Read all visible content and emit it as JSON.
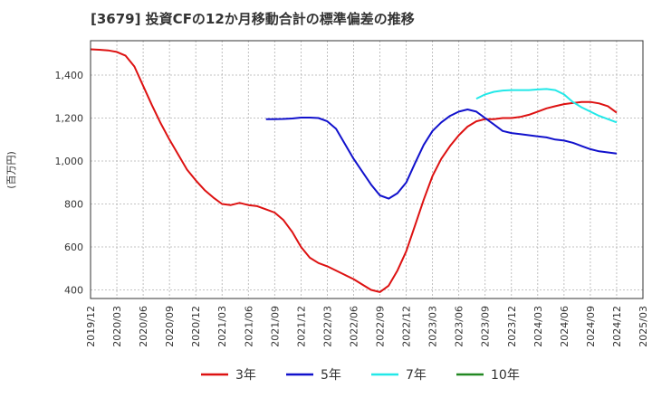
{
  "chart_data": {
    "type": "line",
    "title": "[3679]  投資CFの12か月移動合計の標準偏差の推移",
    "ylabel": "(百万円)",
    "xlabel": "",
    "ylim": [
      360,
      1560
    ],
    "yticks": [
      400,
      600,
      800,
      1000,
      1200,
      1400
    ],
    "ytick_labels": [
      "400",
      "600",
      "800",
      "1,000",
      "1,200",
      "1,400"
    ],
    "xlim": [
      "2019-12",
      "2025-03"
    ],
    "xtick_labels": [
      "2019/12",
      "2020/03",
      "2020/06",
      "2020/09",
      "2020/12",
      "2021/03",
      "2021/06",
      "2021/09",
      "2021/12",
      "2022/03",
      "2022/06",
      "2022/09",
      "2022/12",
      "2023/03",
      "2023/06",
      "2023/09",
      "2023/12",
      "2024/03",
      "2024/06",
      "2024/09",
      "2024/12",
      "2025/03"
    ],
    "grid": true,
    "legend_position": "bottom",
    "series": [
      {
        "name": "3年",
        "color": "#dd1111",
        "x": [
          "2019-12",
          "2020-01",
          "2020-02",
          "2020-03",
          "2020-04",
          "2020-05",
          "2020-06",
          "2020-07",
          "2020-08",
          "2020-09",
          "2020-10",
          "2020-11",
          "2020-12",
          "2021-01",
          "2021-02",
          "2021-03",
          "2021-04",
          "2021-05",
          "2021-06",
          "2021-07",
          "2021-08",
          "2021-09",
          "2021-10",
          "2021-11",
          "2021-12",
          "2022-01",
          "2022-02",
          "2022-03",
          "2022-04",
          "2022-05",
          "2022-06",
          "2022-07",
          "2022-08",
          "2022-09",
          "2022-10",
          "2022-11",
          "2022-12",
          "2023-01",
          "2023-02",
          "2023-03",
          "2023-04",
          "2023-05",
          "2023-06",
          "2023-07",
          "2023-08",
          "2023-09",
          "2023-10",
          "2023-11",
          "2023-12",
          "2024-01",
          "2024-02",
          "2024-03",
          "2024-04",
          "2024-05",
          "2024-06",
          "2024-07",
          "2024-08",
          "2024-09",
          "2024-10",
          "2024-11",
          "2024-12"
        ],
        "values": [
          1520,
          1518,
          1515,
          1508,
          1490,
          1440,
          1350,
          1260,
          1175,
          1100,
          1030,
          960,
          910,
          865,
          830,
          800,
          795,
          805,
          795,
          790,
          775,
          760,
          725,
          670,
          600,
          550,
          525,
          510,
          490,
          470,
          450,
          425,
          400,
          390,
          420,
          490,
          580,
          700,
          820,
          930,
          1010,
          1070,
          1120,
          1160,
          1185,
          1195,
          1195,
          1200,
          1200,
          1205,
          1215,
          1230,
          1245,
          1255,
          1265,
          1270,
          1275,
          1275,
          1268,
          1255,
          1225
        ]
      },
      {
        "name": "5年",
        "color": "#1111cc",
        "x": [
          "2021-08",
          "2021-09",
          "2021-10",
          "2021-11",
          "2021-12",
          "2022-01",
          "2022-02",
          "2022-03",
          "2022-04",
          "2022-05",
          "2022-06",
          "2022-07",
          "2022-08",
          "2022-09",
          "2022-10",
          "2022-11",
          "2022-12",
          "2023-01",
          "2023-02",
          "2023-03",
          "2023-04",
          "2023-05",
          "2023-06",
          "2023-07",
          "2023-08",
          "2023-09",
          "2023-10",
          "2023-11",
          "2023-12",
          "2024-01",
          "2024-02",
          "2024-03",
          "2024-04",
          "2024-05",
          "2024-06",
          "2024-07",
          "2024-08",
          "2024-09",
          "2024-10",
          "2024-11",
          "2024-12"
        ],
        "values": [
          1195,
          1195,
          1196,
          1198,
          1202,
          1202,
          1200,
          1185,
          1150,
          1080,
          1010,
          950,
          890,
          840,
          825,
          850,
          900,
          990,
          1075,
          1140,
          1180,
          1210,
          1230,
          1240,
          1230,
          1200,
          1170,
          1140,
          1130,
          1125,
          1120,
          1115,
          1110,
          1100,
          1095,
          1085,
          1070,
          1055,
          1045,
          1040,
          1035
        ]
      },
      {
        "name": "7年",
        "color": "#22e8e8",
        "x": [
          "2023-08",
          "2023-09",
          "2023-10",
          "2023-11",
          "2023-12",
          "2024-01",
          "2024-02",
          "2024-03",
          "2024-04",
          "2024-05",
          "2024-06",
          "2024-07",
          "2024-08",
          "2024-09",
          "2024-10",
          "2024-11",
          "2024-12"
        ],
        "values": [
          1290,
          1310,
          1322,
          1328,
          1330,
          1330,
          1330,
          1333,
          1335,
          1330,
          1310,
          1275,
          1250,
          1230,
          1210,
          1195,
          1180
        ]
      },
      {
        "name": "10年",
        "color": "#228822",
        "x": [],
        "values": []
      }
    ]
  }
}
